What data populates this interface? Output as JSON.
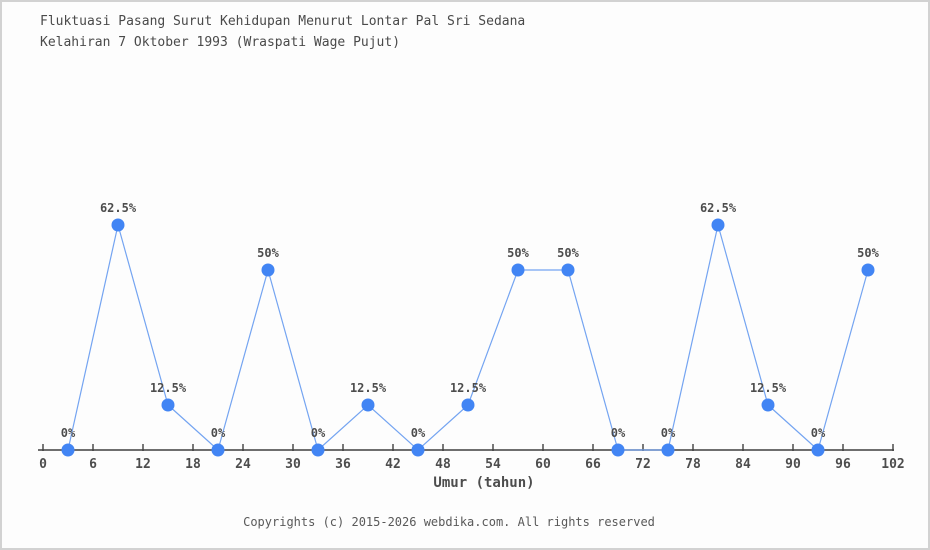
{
  "header": {
    "title_line1": "Fluktuasi Pasang Surut Kehidupan Menurut Lontar Pal Sri Sedana",
    "title_line2": "Kelahiran 7 Oktober 1993 (Wraspati Wage Pujut)"
  },
  "chart_data": {
    "type": "line",
    "title": "Fluktuasi Pasang Surut Kehidupan Menurut Lontar Pal Sri Sedana Kelahiran 7 Oktober 1993 (Wraspati Wage Pujut)",
    "xlabel": "Umur (tahun)",
    "ylabel": "",
    "x": [
      3,
      9,
      15,
      21,
      27,
      33,
      39,
      45,
      51,
      57,
      63,
      69,
      75,
      81,
      87,
      93,
      99
    ],
    "values": [
      0,
      62.5,
      12.5,
      0,
      50,
      0,
      12.5,
      0,
      12.5,
      50,
      50,
      0,
      0,
      62.5,
      12.5,
      0,
      50
    ],
    "point_labels": [
      "0%",
      "62.5%",
      "12.5%",
      "0%",
      "50%",
      "0%",
      "12.5%",
      "0%",
      "12.5%",
      "50%",
      "50%",
      "0%",
      "0%",
      "62.5%",
      "12.5%",
      "0%",
      "50%"
    ],
    "x_ticks": [
      0,
      6,
      12,
      18,
      24,
      30,
      36,
      42,
      48,
      54,
      60,
      66,
      72,
      78,
      84,
      90,
      96,
      102
    ],
    "xlim": [
      0,
      102
    ],
    "ylim": [
      0,
      100
    ],
    "grid": false,
    "legend": null,
    "colors": {
      "marker": "#4285f4",
      "line": "#74a4f1",
      "axis": "#3f3f3f",
      "tick_label": "#4d4d4d",
      "point_label": "#4d4d4d"
    }
  },
  "footer": {
    "copyright": "Copyrights (c) 2015-2026 webdika.com. All rights reserved"
  }
}
